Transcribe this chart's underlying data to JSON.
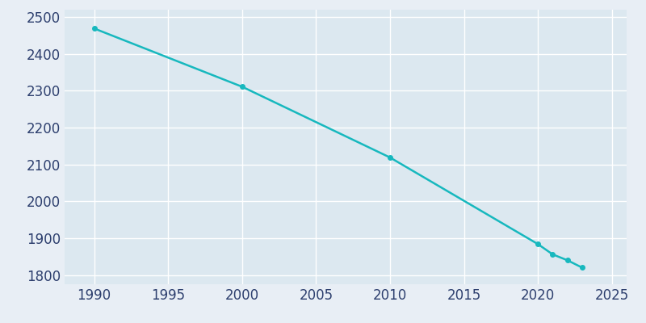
{
  "years": [
    1990,
    2000,
    2010,
    2020,
    2021,
    2022,
    2023
  ],
  "population": [
    2469,
    2311,
    2119,
    1884,
    1856,
    1840,
    1820
  ],
  "line_color": "#17b8be",
  "marker_color": "#17b8be",
  "plot_bg_color": "#dce8f0",
  "outer_bg_color": "#e8eef5",
  "grid_color": "#ffffff",
  "tick_color": "#2d3f6e",
  "xlim": [
    1988,
    2026
  ],
  "ylim": [
    1775,
    2520
  ],
  "xticks": [
    1990,
    1995,
    2000,
    2005,
    2010,
    2015,
    2020,
    2025
  ],
  "yticks": [
    1800,
    1900,
    2000,
    2100,
    2200,
    2300,
    2400,
    2500
  ],
  "linewidth": 1.8,
  "markersize": 4,
  "tick_fontsize": 12
}
